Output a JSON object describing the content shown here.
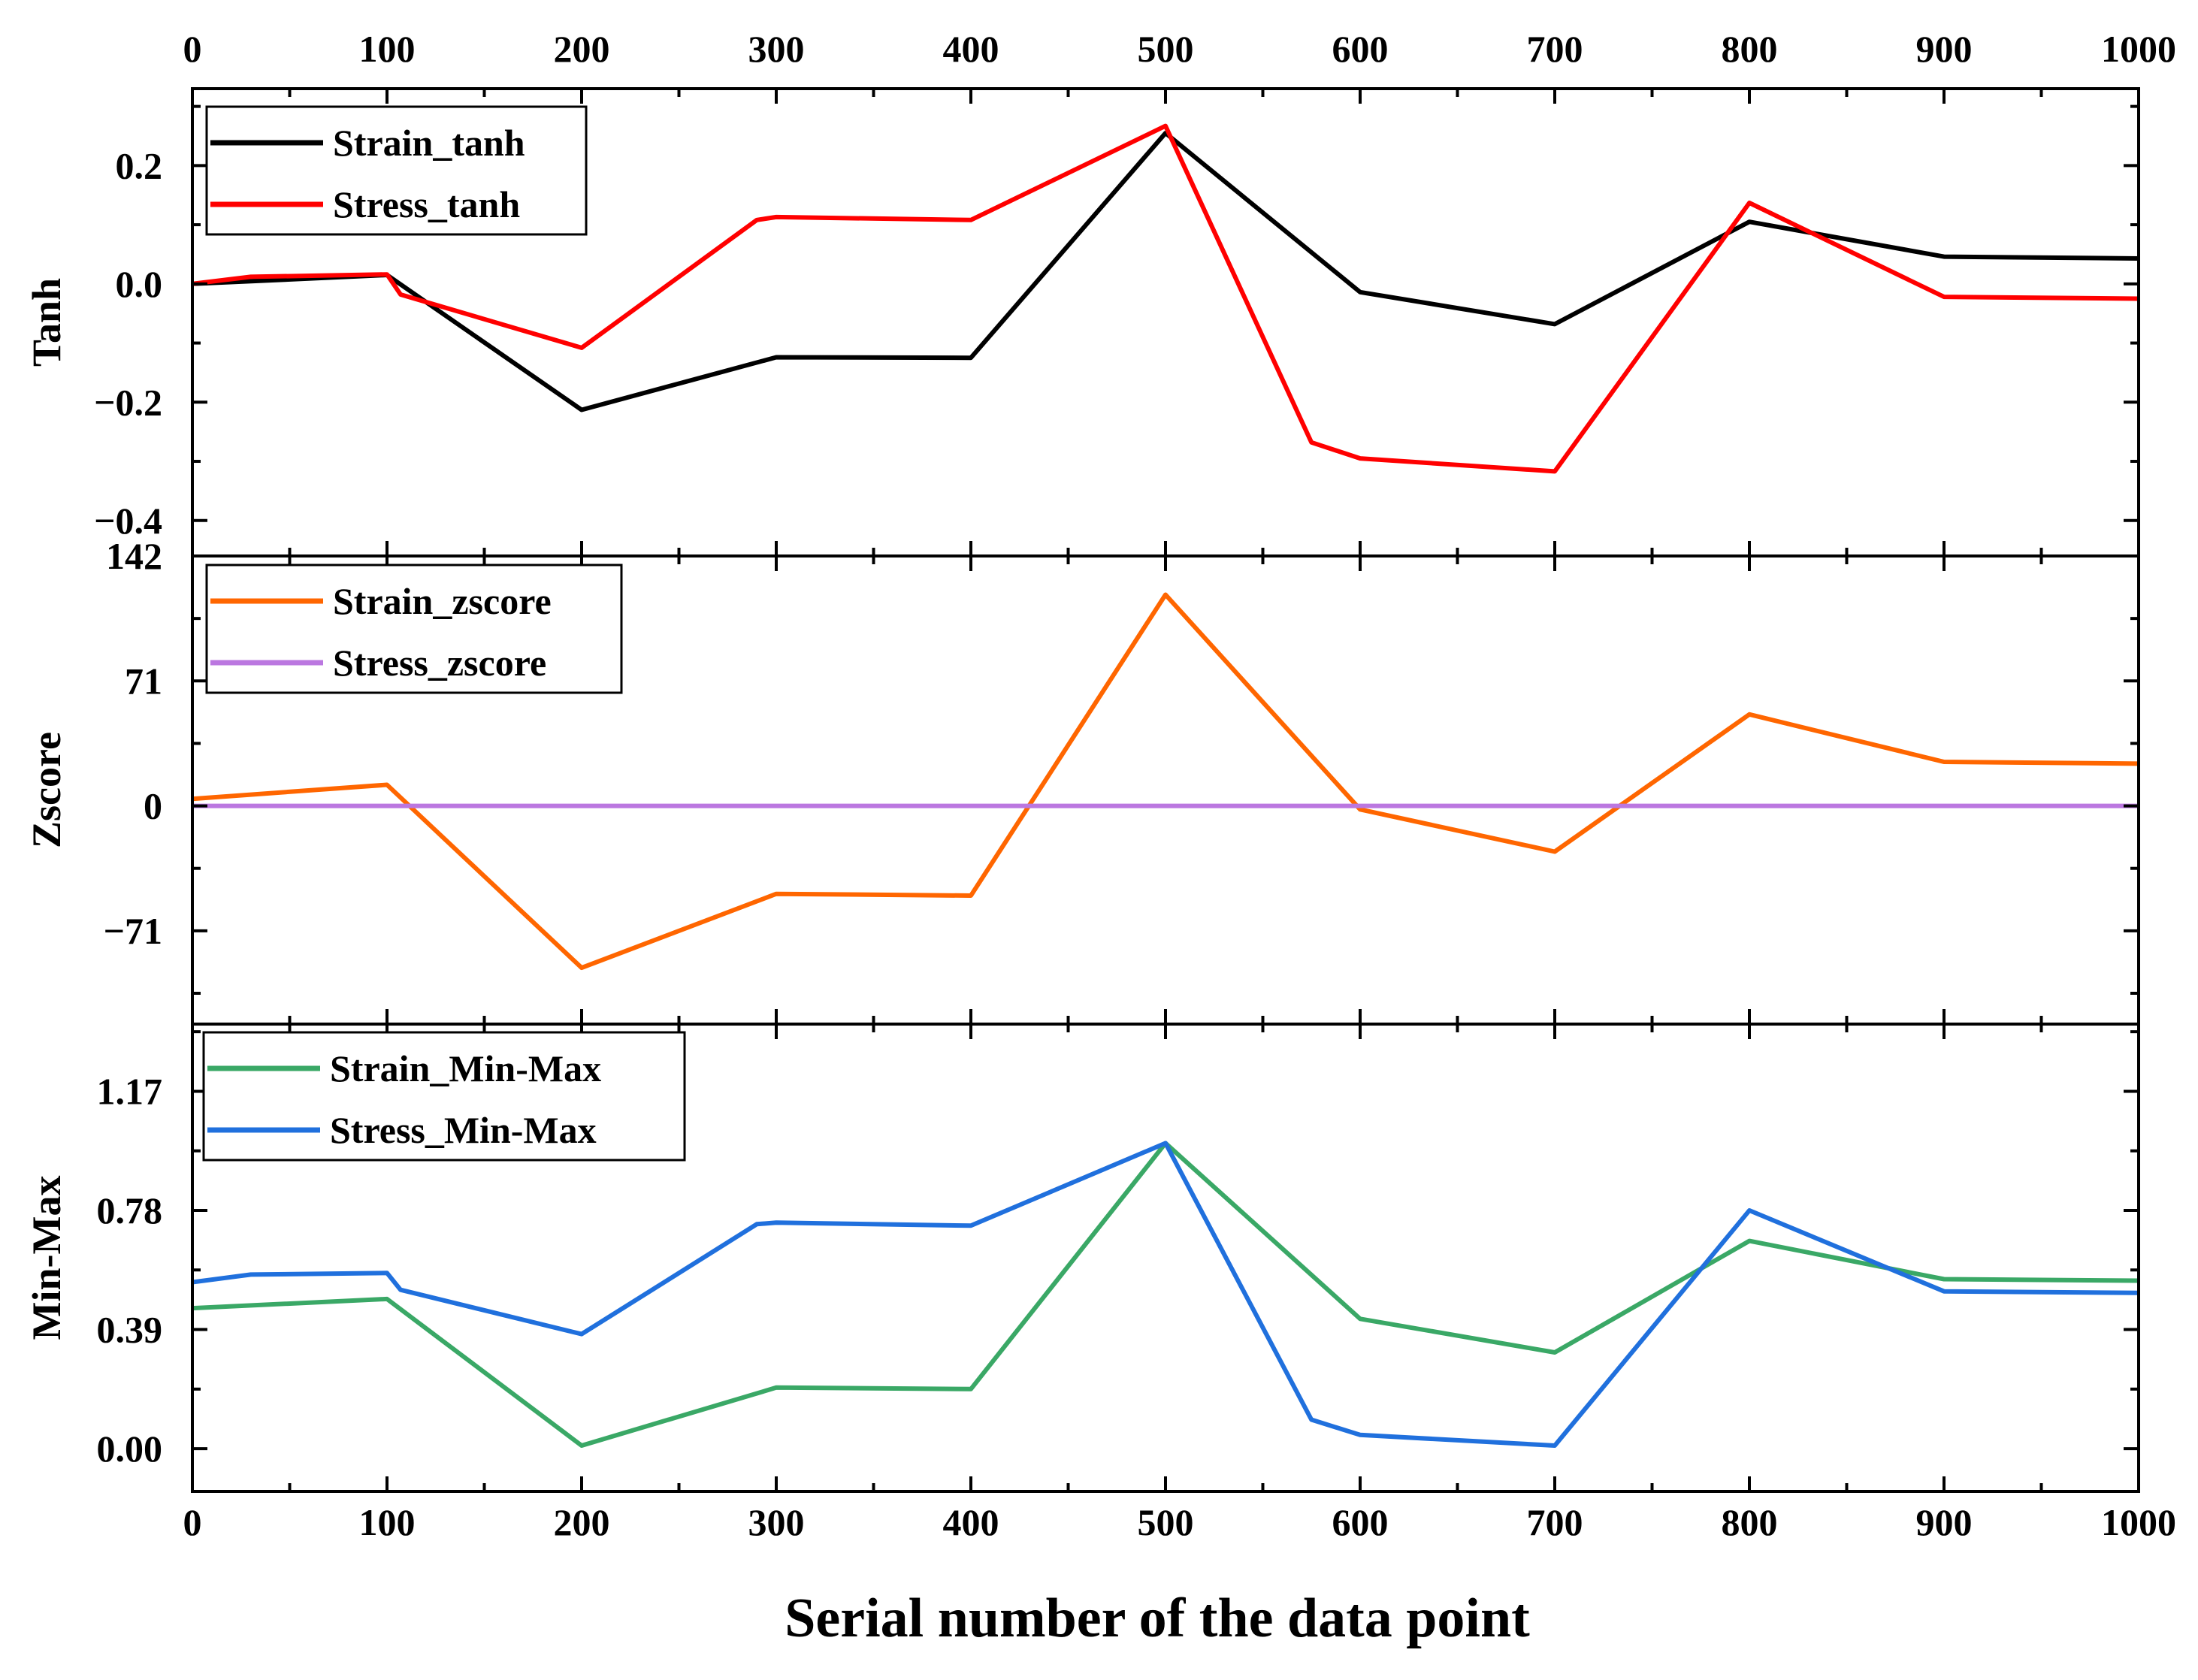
{
  "chart_data": {
    "type": "line",
    "xlabel": "Serial number of the data point",
    "x_ticks": [
      "0",
      "100",
      "200",
      "300",
      "400",
      "500",
      "600",
      "700",
      "800",
      "900",
      "1000"
    ],
    "xlim": [
      0,
      1000
    ],
    "panels": [
      {
        "ylabel": "Tanh",
        "ylim": [
          -0.46,
          0.33
        ],
        "y_ticks": [
          {
            "value": 0.2,
            "label": "0.2"
          },
          {
            "value": 0.0,
            "label": "0.0"
          },
          {
            "value": -0.2,
            "label": "−0.2"
          },
          {
            "value": -0.4,
            "label": "−0.4"
          }
        ],
        "legend_position": "top-left",
        "series": [
          {
            "name": "Strain_tanh",
            "color": "#000000",
            "x": [
              0,
              100,
              200,
              300,
              400,
              500,
              600,
              700,
              800,
              900,
              1000
            ],
            "y": [
              0.0,
              0.015,
              -0.213,
              -0.124,
              -0.125,
              0.255,
              -0.014,
              -0.068,
              0.105,
              0.046,
              0.043
            ]
          },
          {
            "name": "Stress_tanh",
            "color": "#ff0000",
            "x": [
              0,
              30,
              100,
              107,
              200,
              290,
              300,
              400,
              500,
              575,
              600,
              700,
              800,
              900,
              1000
            ],
            "y": [
              0.0,
              0.012,
              0.016,
              -0.018,
              -0.108,
              0.108,
              0.113,
              0.108,
              0.267,
              -0.268,
              -0.295,
              -0.317,
              0.137,
              -0.022,
              -0.025
            ]
          }
        ]
      },
      {
        "ylabel": "Zscore",
        "ylim": [
          -124,
          142
        ],
        "y_ticks": [
          {
            "value": 142,
            "label": "142"
          },
          {
            "value": 71,
            "label": "71"
          },
          {
            "value": 0,
            "label": "0"
          },
          {
            "value": -71,
            "label": "−71"
          }
        ],
        "legend_position": "top-left",
        "series": [
          {
            "name": "Strain_zscore",
            "color": "#ff6600",
            "x": [
              0,
              100,
              200,
              300,
              400,
              500,
              600,
              700,
              800,
              900,
              1000
            ],
            "y": [
              4,
              12,
              -92,
              -50,
              -51,
              120,
              -2,
              -26,
              52,
              25,
              24
            ]
          },
          {
            "name": "Stress_zscore",
            "color": "#bb77e0",
            "x": [
              0,
              1000
            ],
            "y": [
              0,
              0
            ]
          }
        ]
      },
      {
        "ylabel": "Min-Max",
        "ylim": [
          -0.14,
          1.39
        ],
        "y_ticks": [
          {
            "value": 1.17,
            "label": "1.17"
          },
          {
            "value": 0.78,
            "label": "0.78"
          },
          {
            "value": 0.39,
            "label": "0.39"
          },
          {
            "value": 0.0,
            "label": "0.00"
          }
        ],
        "legend_position": "top-left",
        "series": [
          {
            "name": "Strain_Min-Max",
            "color": "#3aa866",
            "x": [
              0,
              100,
              200,
              300,
              400,
              500,
              600,
              700,
              800,
              900,
              1000
            ],
            "y": [
              0.46,
              0.49,
              0.01,
              0.2,
              0.195,
              1.0,
              0.425,
              0.315,
              0.68,
              0.555,
              0.55
            ]
          },
          {
            "name": "Stress_Min-Max",
            "color": "#2070dd",
            "x": [
              0,
              30,
              100,
              107,
              200,
              290,
              300,
              400,
              500,
              575,
              600,
              700,
              800,
              900,
              1000
            ],
            "y": [
              0.545,
              0.57,
              0.575,
              0.52,
              0.375,
              0.735,
              0.74,
              0.73,
              1.0,
              0.095,
              0.045,
              0.01,
              0.78,
              0.515,
              0.51
            ]
          }
        ]
      }
    ]
  }
}
